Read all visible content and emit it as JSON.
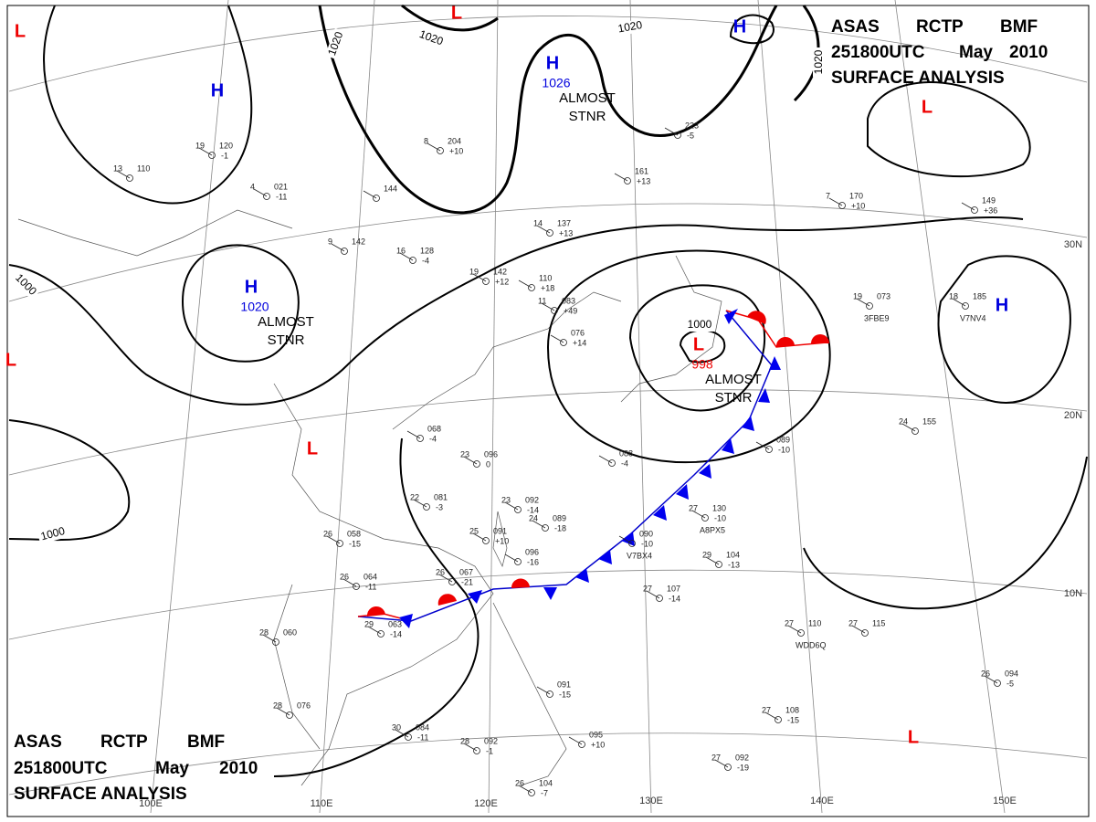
{
  "header": {
    "top_right": [
      [
        "ASAS",
        "RCTP",
        "BMF"
      ],
      [
        "251800UTC",
        "May",
        "2010"
      ],
      [
        "SURFACE  ANALYSIS"
      ]
    ],
    "bottom_left": [
      [
        "ASAS",
        "RCTP",
        "BMF"
      ],
      [
        "251800UTC",
        "May",
        "2010"
      ],
      [
        "SURFACE  ANALYSIS"
      ]
    ]
  },
  "pressure_centers": [
    {
      "label": "L"
    },
    {
      "label": "H"
    },
    {
      "label": "L"
    },
    {
      "label": "H",
      "value": "1026",
      "note": [
        "ALMOST",
        "STNR"
      ]
    },
    {
      "label": "H"
    },
    {
      "label": "L"
    },
    {
      "label": "H",
      "value": "1020",
      "note": [
        "ALMOST",
        "STNR"
      ]
    },
    {
      "label": "L"
    },
    {
      "label": "L"
    },
    {
      "label": "L",
      "value": "998",
      "note": [
        "ALMOST",
        "STNR"
      ]
    },
    {
      "label": "H"
    },
    {
      "label": "L"
    }
  ],
  "isobar_labels": [
    "1020",
    "1020",
    "1020",
    "1020",
    "1000",
    "1000",
    "1000"
  ],
  "graticule": {
    "lon_labels": [
      "100E",
      "110E",
      "120E",
      "130E",
      "140E",
      "150E"
    ],
    "lat_labels": [
      "30N",
      "20N",
      "10N"
    ]
  },
  "stations": [
    {
      "temperature": "19",
      "pressure": "120",
      "tendency": "-1"
    },
    {
      "temperature": "13",
      "pressure": "110"
    },
    {
      "temperature": "8",
      "pressure": "204",
      "tendency": "+10"
    },
    {
      "temperature": "14",
      "pressure": "137",
      "tendency": "+13"
    },
    {
      "temperature": "9",
      "pressure": "142"
    },
    {
      "temperature": "16",
      "pressure": "128",
      "tendency": "-4"
    },
    {
      "temperature": "19",
      "pressure": "142",
      "tendency": "+12"
    },
    {
      "pressure": "110",
      "tendency": "+18"
    },
    {
      "temperature": "11",
      "pressure": "083",
      "tendency": "+49"
    },
    {
      "pressure": "076",
      "tendency": "+14"
    },
    {
      "temperature": "4",
      "pressure": "021",
      "tendency": "-11"
    },
    {
      "pressure": "144"
    },
    {
      "pressure": "161",
      "tendency": "+13"
    },
    {
      "pressure": "223",
      "tendency": "-5"
    },
    {
      "temperature": "7",
      "pressure": "170",
      "tendency": "+10"
    },
    {
      "pressure": "149",
      "tendency": "+36"
    },
    {
      "temperature": "19",
      "pressure": "073",
      "id": "3FBE9"
    },
    {
      "temperature": "18",
      "pressure": "185",
      "id": "V7NV4"
    },
    {
      "temperature": "24",
      "pressure": "155"
    },
    {
      "pressure": "068",
      "tendency": "-4"
    },
    {
      "temperature": "23",
      "pressure": "096",
      "tendency": "0"
    },
    {
      "temperature": "22",
      "pressure": "081",
      "tendency": "-3"
    },
    {
      "pressure": "088",
      "tendency": "-4"
    },
    {
      "temperature": "23",
      "pressure": "092",
      "tendency": "-14"
    },
    {
      "temperature": "24",
      "pressure": "089",
      "tendency": "-18"
    },
    {
      "temperature": "25",
      "pressure": "091",
      "tendency": "+10"
    },
    {
      "pressure": "096",
      "tendency": "-16"
    },
    {
      "temperature": "27",
      "pressure": "130",
      "tendency": "-10",
      "id": "A8PX5"
    },
    {
      "temperature": "29",
      "pressure": "104",
      "tendency": "-13"
    },
    {
      "temperature": "26",
      "pressure": "058",
      "tendency": "-15"
    },
    {
      "temperature": "26",
      "pressure": "064",
      "tendency": "-11"
    },
    {
      "temperature": "26",
      "pressure": "067",
      "tendency": "-21"
    },
    {
      "temperature": "29",
      "pressure": "063",
      "tendency": "-14"
    },
    {
      "temperature": "28",
      "pressure": "060"
    },
    {
      "temperature": "28",
      "pressure": "076"
    },
    {
      "temperature": "30",
      "pressure": "084",
      "tendency": "-11"
    },
    {
      "temperature": "28",
      "pressure": "092",
      "tendency": "-1"
    },
    {
      "temperature": "26",
      "pressure": "104",
      "tendency": "-7"
    },
    {
      "pressure": "091",
      "tendency": "-15"
    },
    {
      "pressure": "095",
      "tendency": "+10"
    },
    {
      "temperature": "27",
      "pressure": "107",
      "tendency": "-14"
    },
    {
      "temperature": "27",
      "pressure": "110",
      "id": "WDD6Q"
    },
    {
      "temperature": "27",
      "pressure": "115"
    },
    {
      "temperature": "27",
      "pressure": "108",
      "tendency": "-15"
    },
    {
      "temperature": "27",
      "pressure": "092",
      "tendency": "-19"
    },
    {
      "temperature": "26",
      "pressure": "094",
      "tendency": "-5"
    },
    {
      "pressure": "089",
      "tendency": "-10"
    },
    {
      "pressure": "090",
      "tendency": "-10",
      "id": "V7BX4"
    }
  ]
}
